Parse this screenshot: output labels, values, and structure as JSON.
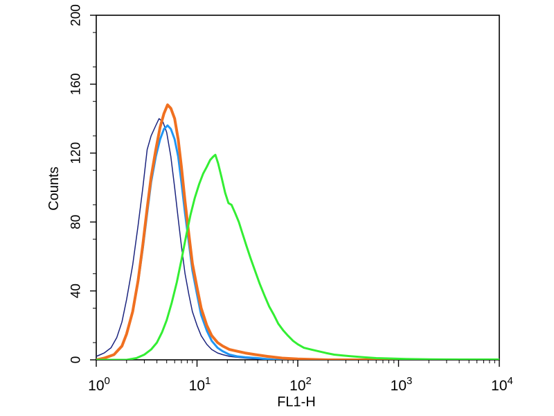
{
  "chart_data": {
    "type": "line",
    "title": "",
    "xlabel": "FL1-H",
    "ylabel": "Counts",
    "x_scale": "log",
    "xlim": [
      1,
      10000
    ],
    "ylim": [
      0,
      200
    ],
    "x_ticks": [
      {
        "value": 1,
        "base": "10",
        "exp": "0"
      },
      {
        "value": 10,
        "base": "10",
        "exp": "1"
      },
      {
        "value": 100,
        "base": "10",
        "exp": "2"
      },
      {
        "value": 1000,
        "base": "10",
        "exp": "3"
      },
      {
        "value": 10000,
        "base": "10",
        "exp": "4"
      }
    ],
    "y_ticks": [
      {
        "value": 0,
        "label": "0"
      },
      {
        "value": 40,
        "label": "40"
      },
      {
        "value": 80,
        "label": "80"
      },
      {
        "value": 120,
        "label": "120"
      },
      {
        "value": 160,
        "label": "160"
      },
      {
        "value": 200,
        "label": "200"
      }
    ],
    "grid": false,
    "legend": "none",
    "series": [
      {
        "color": "#1a237e",
        "stroke": 1.5,
        "points": [
          [
            1.0,
            2
          ],
          [
            1.1,
            3
          ],
          [
            1.2,
            4
          ],
          [
            1.4,
            7
          ],
          [
            1.6,
            13
          ],
          [
            1.8,
            22
          ],
          [
            2.0,
            35
          ],
          [
            2.3,
            55
          ],
          [
            2.6,
            78
          ],
          [
            2.9,
            100
          ],
          [
            3.2,
            122
          ],
          [
            3.5,
            130
          ],
          [
            3.9,
            136
          ],
          [
            4.2,
            140
          ],
          [
            4.6,
            138
          ],
          [
            5.0,
            132
          ],
          [
            5.5,
            118
          ],
          [
            6.0,
            100
          ],
          [
            6.5,
            82
          ],
          [
            7.0,
            66
          ],
          [
            7.6,
            50
          ],
          [
            8.3,
            38
          ],
          [
            9.0,
            28
          ],
          [
            10,
            20
          ],
          [
            11,
            14
          ],
          [
            12.5,
            9
          ],
          [
            14,
            6
          ],
          [
            16,
            4
          ],
          [
            18,
            3
          ],
          [
            21,
            2
          ],
          [
            25,
            1.5
          ],
          [
            30,
            1
          ],
          [
            40,
            0.5
          ],
          [
            60,
            0
          ],
          [
            100,
            0
          ],
          [
            1000,
            0
          ],
          [
            10000,
            0
          ]
        ]
      },
      {
        "color": "#2196f3",
        "stroke": 3,
        "points": [
          [
            1.0,
            0
          ],
          [
            1.2,
            1
          ],
          [
            1.5,
            3
          ],
          [
            1.8,
            8
          ],
          [
            2.0,
            15
          ],
          [
            2.3,
            28
          ],
          [
            2.6,
            45
          ],
          [
            2.9,
            65
          ],
          [
            3.2,
            85
          ],
          [
            3.5,
            103
          ],
          [
            3.9,
            118
          ],
          [
            4.3,
            128
          ],
          [
            4.7,
            134
          ],
          [
            5.1,
            136
          ],
          [
            5.5,
            134
          ],
          [
            6.0,
            128
          ],
          [
            6.5,
            118
          ],
          [
            7.0,
            103
          ],
          [
            7.6,
            85
          ],
          [
            8.3,
            68
          ],
          [
            9.0,
            52
          ],
          [
            10,
            38
          ],
          [
            11,
            26
          ],
          [
            12.5,
            17
          ],
          [
            14,
            11
          ],
          [
            16,
            7
          ],
          [
            18,
            5
          ],
          [
            21,
            3
          ],
          [
            25,
            2
          ],
          [
            30,
            1.5
          ],
          [
            40,
            1
          ],
          [
            60,
            0
          ],
          [
            100,
            0
          ],
          [
            10000,
            0
          ]
        ]
      },
      {
        "color": "#f07020",
        "stroke": 4,
        "points": [
          [
            1.0,
            0
          ],
          [
            1.2,
            1
          ],
          [
            1.5,
            3
          ],
          [
            1.8,
            8
          ],
          [
            2.0,
            15
          ],
          [
            2.3,
            28
          ],
          [
            2.6,
            46
          ],
          [
            2.9,
            67
          ],
          [
            3.2,
            88
          ],
          [
            3.5,
            106
          ],
          [
            3.9,
            122
          ],
          [
            4.3,
            135
          ],
          [
            4.7,
            143
          ],
          [
            5.1,
            148
          ],
          [
            5.5,
            146
          ],
          [
            6.0,
            140
          ],
          [
            6.5,
            128
          ],
          [
            7.0,
            112
          ],
          [
            7.6,
            92
          ],
          [
            8.3,
            73
          ],
          [
            9.0,
            56
          ],
          [
            10,
            42
          ],
          [
            11,
            30
          ],
          [
            12.5,
            20
          ],
          [
            14,
            14
          ],
          [
            16,
            10
          ],
          [
            18,
            8
          ],
          [
            21,
            6
          ],
          [
            25,
            5
          ],
          [
            30,
            4
          ],
          [
            38,
            3
          ],
          [
            50,
            2
          ],
          [
            70,
            1
          ],
          [
            100,
            0.5
          ],
          [
            200,
            0
          ],
          [
            10000,
            0
          ]
        ]
      },
      {
        "color": "#33ee33",
        "stroke": 3,
        "points": [
          [
            1.0,
            0
          ],
          [
            2.0,
            0
          ],
          [
            2.5,
            1
          ],
          [
            3.0,
            3
          ],
          [
            3.5,
            6
          ],
          [
            4.0,
            10
          ],
          [
            4.5,
            16
          ],
          [
            5.0,
            23
          ],
          [
            5.6,
            33
          ],
          [
            6.3,
            45
          ],
          [
            7.0,
            58
          ],
          [
            7.8,
            72
          ],
          [
            8.6,
            84
          ],
          [
            9.5,
            94
          ],
          [
            10.5,
            102
          ],
          [
            11.5,
            108
          ],
          [
            12.5,
            112
          ],
          [
            13.5,
            116
          ],
          [
            14.5,
            118
          ],
          [
            15.2,
            119
          ],
          [
            16.2,
            114
          ],
          [
            17.5,
            106
          ],
          [
            19,
            97
          ],
          [
            20.5,
            91
          ],
          [
            22,
            90
          ],
          [
            24,
            85
          ],
          [
            26,
            80
          ],
          [
            28,
            74
          ],
          [
            31,
            66
          ],
          [
            34,
            59
          ],
          [
            38,
            51
          ],
          [
            42,
            44
          ],
          [
            47,
            37
          ],
          [
            52,
            31
          ],
          [
            58,
            26
          ],
          [
            64,
            21
          ],
          [
            72,
            17
          ],
          [
            80,
            14
          ],
          [
            90,
            11
          ],
          [
            100,
            9
          ],
          [
            115,
            7
          ],
          [
            135,
            6
          ],
          [
            160,
            5
          ],
          [
            190,
            4
          ],
          [
            230,
            3
          ],
          [
            280,
            2.5
          ],
          [
            350,
            2
          ],
          [
            450,
            1.5
          ],
          [
            600,
            1
          ],
          [
            800,
            0.8
          ],
          [
            1200,
            0.5
          ],
          [
            2000,
            0.3
          ],
          [
            4000,
            0.2
          ],
          [
            10000,
            0.2
          ]
        ]
      }
    ]
  }
}
